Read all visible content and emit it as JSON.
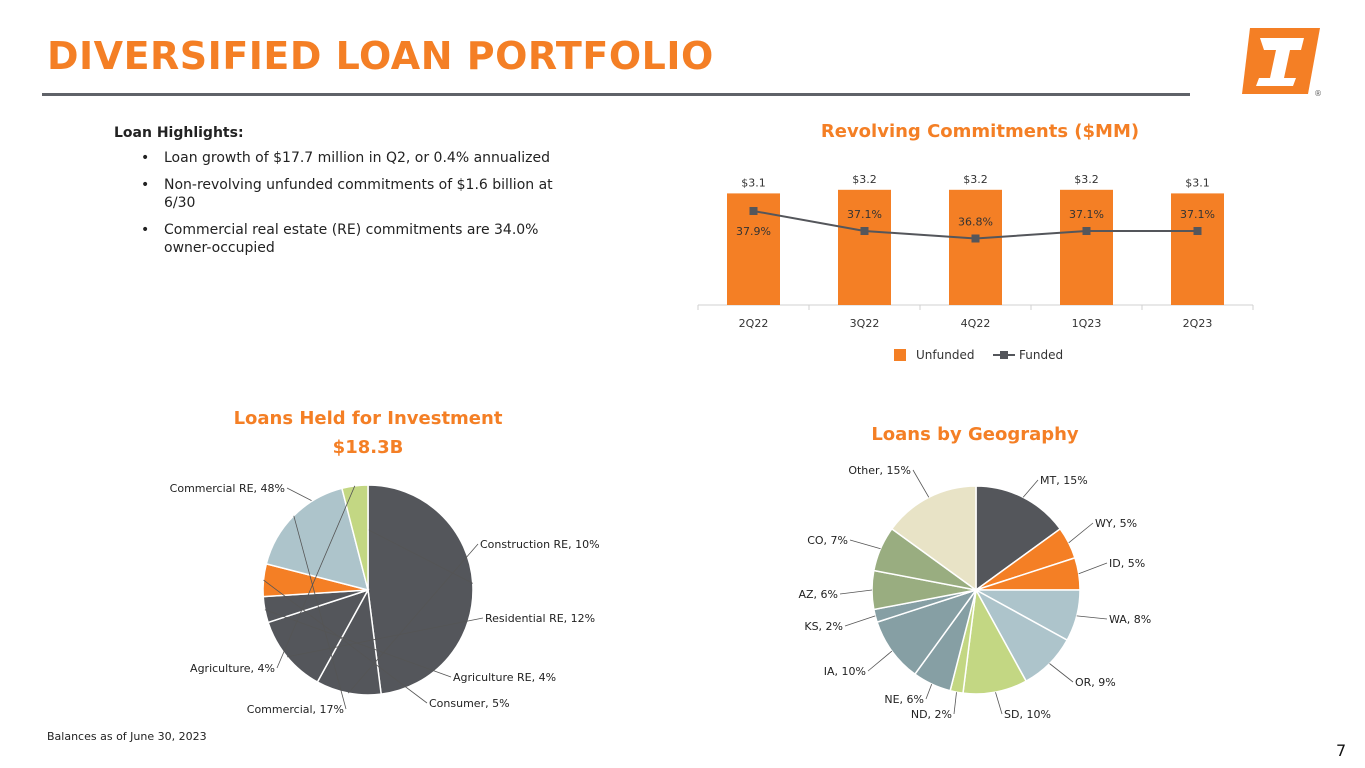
{
  "page": {
    "title": "DIVERSIFIED LOAN PORTFOLIO",
    "page_number": "7",
    "footnote": "Balances as of June 30, 2023",
    "accent_color": "#f47f25",
    "dark_color": "#54565b"
  },
  "highlights": {
    "title": "Loan Highlights:",
    "bullets": [
      "Loan growth of $17.7 million in Q2, or 0.4% annualized",
      "Non-revolving unfunded commitments of $1.6 billion at 6/30",
      "Commercial real estate (RE) commitments are 34.0% owner-occupied"
    ]
  },
  "chart_data": [
    {
      "type": "bar",
      "title": "Revolving Commitments ($MM)",
      "categories": [
        "2Q22",
        "3Q22",
        "4Q22",
        "1Q23",
        "2Q23"
      ],
      "series": [
        {
          "name": "Unfunded",
          "type": "bar",
          "values": [
            3.1,
            3.2,
            3.2,
            3.2,
            3.1
          ],
          "labels": [
            "$3.1",
            "$3.2",
            "$3.2",
            "$3.2",
            "$3.1"
          ],
          "color": "#f47f25"
        },
        {
          "name": "Funded",
          "type": "line",
          "values": [
            37.9,
            37.1,
            36.8,
            37.1,
            37.1
          ],
          "labels": [
            "37.9%",
            "37.1%",
            "36.8%",
            "37.1%",
            "37.1%"
          ],
          "color": "#54565b"
        }
      ],
      "legend": "bottom"
    },
    {
      "type": "pie",
      "title": "Loans Held for Investment",
      "subtitle": "$18.3B",
      "slices": [
        {
          "label": "Commercial RE, 48%",
          "value": 48,
          "color": "#54565b"
        },
        {
          "label": "Construction RE, 10%",
          "value": 10,
          "color": "#54565b"
        },
        {
          "label": "Residential RE, 12%",
          "value": 12,
          "color": "#54565b"
        },
        {
          "label": "Agriculture RE, 4%",
          "value": 4,
          "color": "#54565b"
        },
        {
          "label": "Consumer, 5%",
          "value": 5,
          "color": "#f47f25"
        },
        {
          "label": "Commercial, 17%",
          "value": 17,
          "color": "#adc4cb"
        },
        {
          "label": "Agriculture, 4%",
          "value": 4,
          "color": "#c3d783"
        }
      ]
    },
    {
      "type": "pie",
      "title": "Loans by Geography",
      "slices": [
        {
          "label": "MT, 15%",
          "value": 15,
          "color": "#54565b"
        },
        {
          "label": "WY, 5%",
          "value": 5,
          "color": "#f47f25"
        },
        {
          "label": "ID, 5%",
          "value": 5,
          "color": "#f47f25"
        },
        {
          "label": "WA, 8%",
          "value": 8,
          "color": "#adc4cb"
        },
        {
          "label": "OR, 9%",
          "value": 9,
          "color": "#adc4cb"
        },
        {
          "label": "SD, 10%",
          "value": 10,
          "color": "#c3d783"
        },
        {
          "label": "ND, 2%",
          "value": 2,
          "color": "#c3d783"
        },
        {
          "label": "NE, 6%",
          "value": 6,
          "color": "#869fa4"
        },
        {
          "label": "IA, 10%",
          "value": 10,
          "color": "#869fa4"
        },
        {
          "label": "KS, 2%",
          "value": 2,
          "color": "#869fa4"
        },
        {
          "label": "AZ, 6%",
          "value": 6,
          "color": "#99ad80"
        },
        {
          "label": "CO, 7%",
          "value": 7,
          "color": "#99ad80"
        },
        {
          "label": "Other, 15%",
          "value": 15,
          "color": "#e8e3c6"
        }
      ]
    }
  ]
}
